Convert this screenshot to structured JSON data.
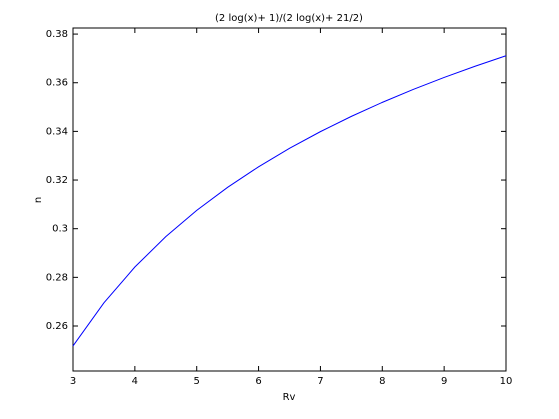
{
  "chart_data": {
    "type": "line",
    "title": "(2 log(x)+ 1)/(2 log(x)+ 21/2)",
    "xlabel": "Rv",
    "ylabel": "n",
    "x": [
      3,
      3.5,
      4,
      4.5,
      5,
      5.5,
      6,
      6.5,
      7,
      7.5,
      8,
      8.5,
      9,
      9.5,
      10
    ],
    "series": [
      {
        "name": "n",
        "color": "#0000ff",
        "values": [
          0.25181,
          0.26954,
          0.28424,
          0.29672,
          0.30753,
          0.31702,
          0.32545,
          0.33304,
          0.3399,
          0.34617,
          0.35193,
          0.35724,
          0.36218,
          0.36678,
          0.37108
        ]
      }
    ],
    "xlim": [
      3,
      10
    ],
    "xticks": [
      3,
      4,
      5,
      6,
      7,
      8,
      9,
      10
    ],
    "ylim": [
      0.2415,
      0.3825
    ],
    "yticks": [
      0.26,
      0.28,
      0.3,
      0.32,
      0.34,
      0.36,
      0.38
    ],
    "grid": false
  }
}
